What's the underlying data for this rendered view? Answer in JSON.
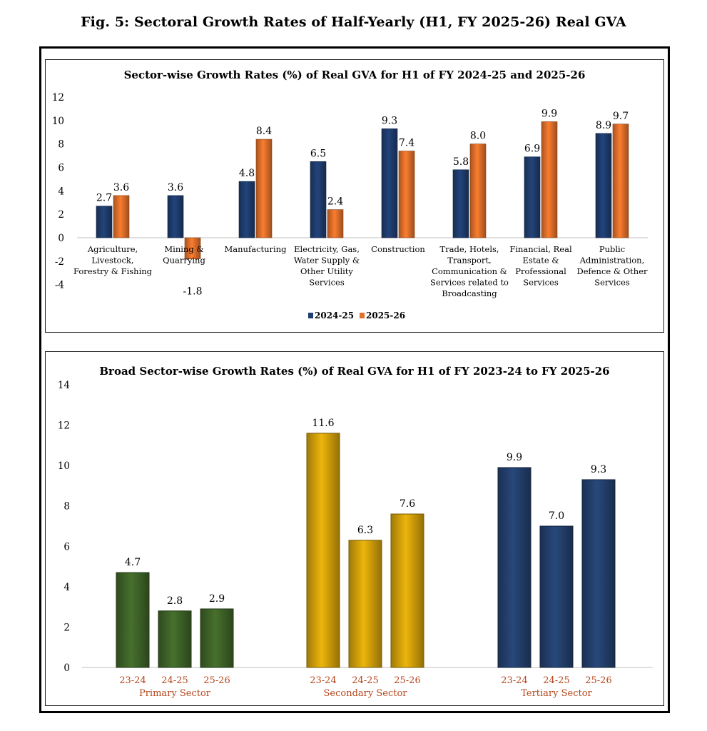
{
  "figure_title": "Fig. 5: Sectoral Growth Rates of Half-Yearly (H1, FY 2025-26) Real GVA",
  "colors": {
    "s2024": "#1f3d6e",
    "s2025": "#e0702a",
    "primary": "#3f6428",
    "secondary": "#d4a20a",
    "tertiary": "#24406e",
    "category_label": "#b5451b"
  },
  "chart_data": [
    {
      "type": "bar",
      "title": "Sector-wise Growth Rates (%) of Real GVA for H1 of FY 2024-25 and 2025-26",
      "categories": [
        [
          "Agriculture,",
          "Livestock,",
          "Forestry & Fishing"
        ],
        [
          "Mining &",
          "Quarrying"
        ],
        [
          "Manufacturing"
        ],
        [
          "Electricity, Gas,",
          "Water Supply &",
          "Other Utility",
          "Services"
        ],
        [
          "Construction"
        ],
        [
          "Trade, Hotels,",
          "Transport,",
          "Communication &",
          "Services related to",
          "Broadcasting"
        ],
        [
          "Financial, Real",
          "Estate &",
          "Professional",
          "Services"
        ],
        [
          "Public",
          "Administration,",
          "Defence & Other",
          "Services"
        ]
      ],
      "series": [
        {
          "name": "2024-25",
          "values": [
            2.7,
            3.6,
            4.8,
            6.5,
            9.3,
            5.8,
            6.9,
            8.9
          ]
        },
        {
          "name": "2025-26",
          "values": [
            3.6,
            -1.8,
            8.4,
            2.4,
            7.4,
            8.0,
            9.9,
            9.7
          ]
        }
      ],
      "ylim": [
        -4,
        12
      ],
      "yticks": [
        -4,
        -2,
        0,
        2,
        4,
        6,
        8,
        10,
        12
      ],
      "legend": "bottom"
    },
    {
      "type": "bar",
      "title": "Broad Sector-wise Growth Rates (%) of Real GVA for H1 of FY 2023-24 to FY 2025-26",
      "groups": [
        {
          "name": "Primary Sector",
          "color": "primary",
          "years": [
            "23-24",
            "24-25",
            "25-26"
          ],
          "values": [
            4.7,
            2.8,
            2.9
          ]
        },
        {
          "name": "Secondary Sector",
          "color": "secondary",
          "years": [
            "23-24",
            "24-25",
            "25-26"
          ],
          "values": [
            11.6,
            6.3,
            7.6
          ]
        },
        {
          "name": "Tertiary Sector",
          "color": "tertiary",
          "years": [
            "23-24",
            "24-25",
            "25-26"
          ],
          "values": [
            9.9,
            7.0,
            9.3
          ]
        }
      ],
      "ylim": [
        0,
        14
      ],
      "yticks": [
        0,
        2,
        4,
        6,
        8,
        10,
        12,
        14
      ]
    }
  ]
}
